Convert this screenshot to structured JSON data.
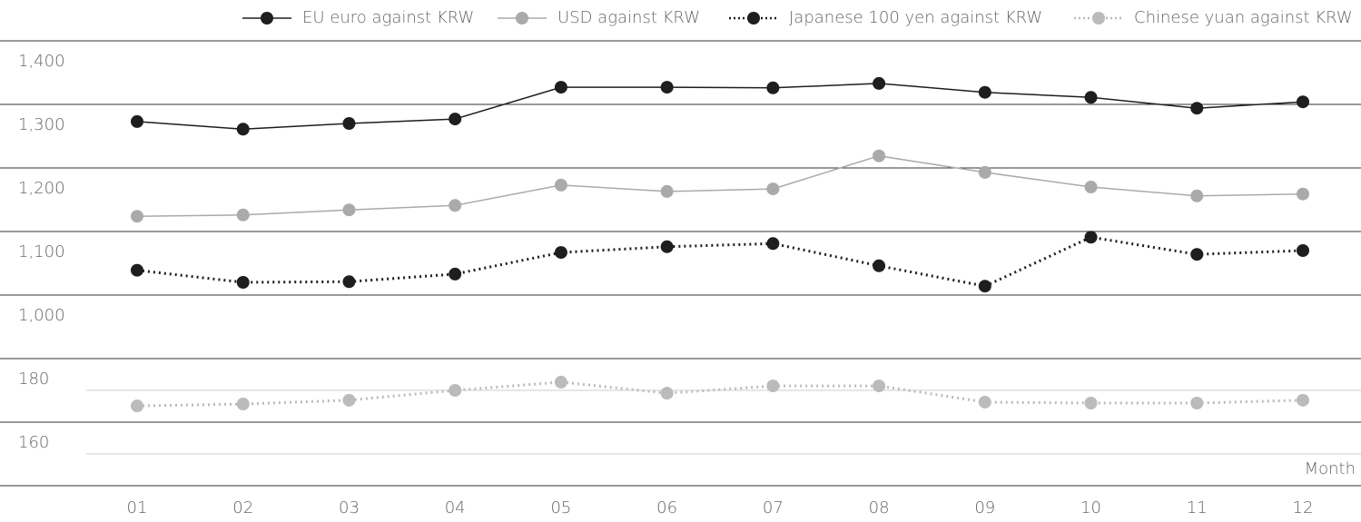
{
  "chart_data": {
    "type": "line",
    "categories": [
      "01",
      "02",
      "03",
      "04",
      "05",
      "06",
      "07",
      "08",
      "09",
      "10",
      "11",
      "12"
    ],
    "x_label": "Month",
    "ylim": [
      1000,
      1400
    ],
    "yticks": [
      {
        "value": 1000,
        "label": "1,000"
      },
      {
        "value": 1100,
        "label": "1,100"
      },
      {
        "value": 1200,
        "label": "1,200"
      },
      {
        "value": 1300,
        "label": "1,300"
      },
      {
        "value": 1400,
        "label": "1,400"
      }
    ],
    "y2lim": [
      140,
      180
    ],
    "y2ticks": [
      160,
      180
    ],
    "grid": true,
    "legend": "top-right",
    "series": [
      {
        "name": "EU euro against KRW",
        "color": "#1e1e1e",
        "line_style": "solid",
        "values": [
          1273,
          1261,
          1270,
          1277,
          1327,
          1327,
          1326,
          1333,
          1319,
          1311,
          1294,
          1304
        ]
      },
      {
        "name": "USD against KRW",
        "color": "#aaaaaa",
        "line_style": "solid",
        "values": [
          1124,
          1126,
          1134,
          1141,
          1173,
          1163,
          1167,
          1219,
          1193,
          1170,
          1156,
          1159
        ]
      },
      {
        "name": "Japanese 100 yen against KRW",
        "color": "#1e1e1e",
        "line_style": "dotted",
        "values": [
          1039,
          1020,
          1021,
          1033,
          1067,
          1076,
          1081,
          1046,
          1014,
          1091,
          1064,
          1070
        ]
      },
      {
        "name": "Chinese yuan against KRW",
        "color": "#bbbbbb",
        "line_style": "dotted",
        "axis": "y2",
        "values": [
          165.1,
          165.7,
          166.9,
          170,
          172.6,
          169.1,
          171.4,
          171.4,
          166.3,
          166,
          166,
          166.9
        ]
      }
    ]
  }
}
